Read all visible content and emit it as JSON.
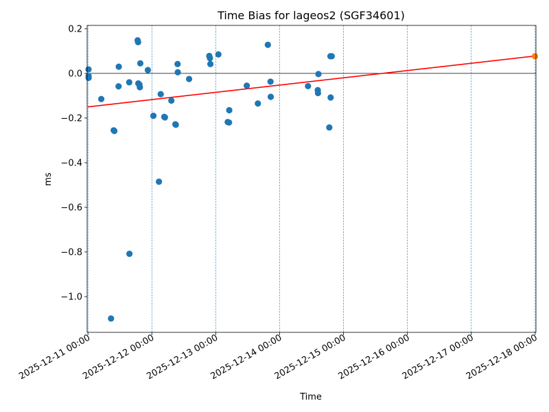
{
  "chart_data": {
    "type": "scatter",
    "title": "Time Bias for lageos2 (SGF34601)",
    "xlabel": "Time",
    "ylabel": "ms",
    "x_unit": "days",
    "xlim": [
      "2025-12-10T23:42:00",
      "2025-12-18T00:18:00"
    ],
    "ylim": [
      -1.16,
      0.215
    ],
    "x_ticks": [
      {
        "value": "2025-12-11T00:00:00",
        "label": "2025-12-11 00:00"
      },
      {
        "value": "2025-12-12T00:00:00",
        "label": "2025-12-12 00:00"
      },
      {
        "value": "2025-12-13T00:00:00",
        "label": "2025-12-13 00:00"
      },
      {
        "value": "2025-12-14T00:00:00",
        "label": "2025-12-14 00:00"
      },
      {
        "value": "2025-12-15T00:00:00",
        "label": "2025-12-15 00:00"
      },
      {
        "value": "2025-12-16T00:00:00",
        "label": "2025-12-16 00:00"
      },
      {
        "value": "2025-12-17T00:00:00",
        "label": "2025-12-17 00:00"
      },
      {
        "value": "2025-12-18T00:00:00",
        "label": "2025-12-18 00:00"
      }
    ],
    "y_ticks": [
      {
        "value": 0.2,
        "label": "0.2"
      },
      {
        "value": 0.0,
        "label": "0.0"
      },
      {
        "value": -0.2,
        "label": "−0.2"
      },
      {
        "value": -0.4,
        "label": "−0.4"
      },
      {
        "value": -0.6,
        "label": "−0.6"
      },
      {
        "value": -0.8,
        "label": "−0.8"
      },
      {
        "value": -1.0,
        "label": "−1.0"
      }
    ],
    "vlines": [
      "2025-12-11T00:00:00",
      "2025-12-12T00:00:00",
      "2025-12-13T00:00:00",
      "2025-12-14T00:00:00",
      "2025-12-15T00:00:00",
      "2025-12-16T00:00:00",
      "2025-12-17T00:00:00",
      "2025-12-18T00:00:00"
    ],
    "hline_y": 0.0,
    "series": [
      {
        "color": "#1f77b4",
        "points": [
          {
            "x": "2025-12-11T00:13:00",
            "y": 0.018
          },
          {
            "x": "2025-12-11T00:14:00",
            "y": -0.012
          },
          {
            "x": "2025-12-11T00:15:00",
            "y": -0.02
          },
          {
            "x": "2025-12-11T05:00:00",
            "y": -0.115
          },
          {
            "x": "2025-12-11T08:40:00",
            "y": -1.098
          },
          {
            "x": "2025-12-11T09:40:00",
            "y": -0.255
          },
          {
            "x": "2025-12-11T09:55:00",
            "y": -0.258
          },
          {
            "x": "2025-12-11T11:30:00",
            "y": -0.058
          },
          {
            "x": "2025-12-11T11:35:00",
            "y": 0.03
          },
          {
            "x": "2025-12-11T15:30:00",
            "y": -0.04
          },
          {
            "x": "2025-12-11T15:35:00",
            "y": -0.808
          },
          {
            "x": "2025-12-11T18:40:00",
            "y": 0.148
          },
          {
            "x": "2025-12-11T18:50:00",
            "y": 0.14
          },
          {
            "x": "2025-12-11T18:55:00",
            "y": -0.045
          },
          {
            "x": "2025-12-11T19:20:00",
            "y": -0.05
          },
          {
            "x": "2025-12-11T19:30:00",
            "y": -0.062
          },
          {
            "x": "2025-12-11T19:40:00",
            "y": 0.045
          },
          {
            "x": "2025-12-11T22:30:00",
            "y": 0.015
          },
          {
            "x": "2025-12-12T00:35:00",
            "y": -0.19
          },
          {
            "x": "2025-12-12T02:40:00",
            "y": -0.485
          },
          {
            "x": "2025-12-12T03:20:00",
            "y": -0.093
          },
          {
            "x": "2025-12-12T04:40:00",
            "y": -0.195
          },
          {
            "x": "2025-12-12T04:55:00",
            "y": -0.197
          },
          {
            "x": "2025-12-12T07:20:00",
            "y": -0.122
          },
          {
            "x": "2025-12-12T08:50:00",
            "y": -0.228
          },
          {
            "x": "2025-12-12T09:00:00",
            "y": -0.23
          },
          {
            "x": "2025-12-12T09:40:00",
            "y": 0.042
          },
          {
            "x": "2025-12-12T09:45:00",
            "y": 0.005
          },
          {
            "x": "2025-12-12T14:00:00",
            "y": -0.025
          },
          {
            "x": "2025-12-12T21:35:00",
            "y": 0.078
          },
          {
            "x": "2025-12-12T21:50:00",
            "y": 0.068
          },
          {
            "x": "2025-12-12T22:00:00",
            "y": 0.042
          },
          {
            "x": "2025-12-13T01:00:00",
            "y": 0.085
          },
          {
            "x": "2025-12-13T04:30:00",
            "y": -0.218
          },
          {
            "x": "2025-12-13T05:00:00",
            "y": -0.22
          },
          {
            "x": "2025-12-13T05:05:00",
            "y": -0.165
          },
          {
            "x": "2025-12-13T11:40:00",
            "y": -0.055
          },
          {
            "x": "2025-12-13T15:50:00",
            "y": -0.135
          },
          {
            "x": "2025-12-13T19:35:00",
            "y": 0.128
          },
          {
            "x": "2025-12-13T20:35:00",
            "y": -0.037
          },
          {
            "x": "2025-12-13T20:40:00",
            "y": -0.105
          },
          {
            "x": "2025-12-14T10:40:00",
            "y": -0.057
          },
          {
            "x": "2025-12-14T14:20:00",
            "y": -0.075
          },
          {
            "x": "2025-12-14T14:25:00",
            "y": -0.088
          },
          {
            "x": "2025-12-14T14:35:00",
            "y": -0.003
          },
          {
            "x": "2025-12-14T18:40:00",
            "y": -0.242
          },
          {
            "x": "2025-12-14T19:05:00",
            "y": 0.077
          },
          {
            "x": "2025-12-14T19:10:00",
            "y": -0.108
          },
          {
            "x": "2025-12-14T19:35:00",
            "y": 0.077
          }
        ]
      },
      {
        "color": "#ff7f0e",
        "points": [
          {
            "x": "2025-12-17T23:55:00",
            "y": 0.077
          }
        ]
      }
    ],
    "fit_line": {
      "color": "#ff0000",
      "start": {
        "x": "2025-12-11T00:00:00",
        "y": -0.15
      },
      "end": {
        "x": "2025-12-18T00:00:00",
        "y": 0.078
      }
    }
  }
}
